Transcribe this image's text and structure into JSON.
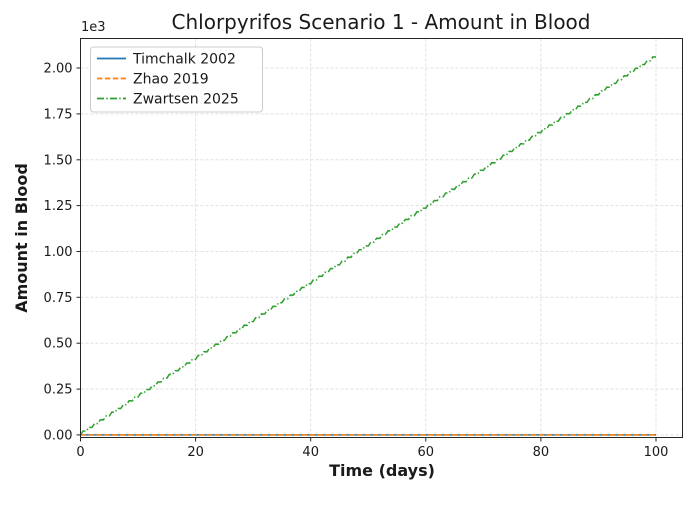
{
  "figure": {
    "title": "Chlorpyrifos Scenario 1 - Amount in Blood",
    "x_axis_label": "Time (days)",
    "y_axis_label": "Amount in Blood",
    "y_offset_text": "1e3",
    "background_color": "#ffffff"
  },
  "legend": {
    "position": "upper-left",
    "entries": [
      {
        "label": "Timchalk 2002",
        "color": "#1f77b4",
        "linestyle": "solid"
      },
      {
        "label": "Zhao 2019",
        "color": "#ff7f0e",
        "linestyle": "dashed"
      },
      {
        "label": "Zwartsen 2025",
        "color": "#2ca02c",
        "linestyle": "dashdot"
      }
    ]
  },
  "chart_data": {
    "type": "line",
    "title": "Chlorpyrifos Scenario 1 - Amount in Blood",
    "xlabel": "Time (days)",
    "ylabel": "Amount in Blood",
    "y_offset_multiplier": "1e3",
    "xlim": [
      0,
      104.6
    ],
    "ylim": [
      -14,
      2161
    ],
    "x_ticks": [
      0,
      20,
      40,
      60,
      80,
      100
    ],
    "x_tick_labels": [
      "0",
      "20",
      "40",
      "60",
      "80",
      "100"
    ],
    "y_ticks": [
      0,
      250,
      500,
      750,
      1000,
      1250,
      1500,
      1750,
      2000
    ],
    "y_tick_labels": [
      "0.00",
      "0.25",
      "0.50",
      "0.75",
      "1.00",
      "1.25",
      "1.50",
      "1.75",
      "2.00"
    ],
    "grid": {
      "visible": true,
      "linestyle": "dashed",
      "color": "#e0e0e0"
    },
    "x": [
      0,
      5,
      10,
      15,
      20,
      25,
      30,
      35,
      40,
      45,
      50,
      55,
      60,
      65,
      70,
      75,
      80,
      85,
      90,
      95,
      100
    ],
    "series": [
      {
        "name": "Timchalk 2002",
        "color": "#1f77b4",
        "linestyle": "solid",
        "values": [
          0,
          0,
          0,
          0,
          0,
          0,
          0,
          0,
          0,
          0,
          0,
          0,
          0,
          0,
          0,
          0,
          0,
          0,
          0,
          0,
          0
        ],
        "note": "flat at ~0 across all 100 days"
      },
      {
        "name": "Zhao 2019",
        "color": "#ff7f0e",
        "linestyle": "dashed",
        "values": [
          0,
          0,
          0,
          0,
          0,
          0,
          0,
          0,
          0,
          0,
          0,
          0,
          0,
          0,
          0,
          0,
          0,
          0,
          0,
          0,
          0
        ],
        "note": "flat at ~0, overlapping Timchalk 2002 line"
      },
      {
        "name": "Zwartsen 2025",
        "color": "#2ca02c",
        "linestyle": "dashdot",
        "values": [
          0,
          103,
          206,
          309,
          412,
          515,
          618,
          721,
          824,
          927,
          1030,
          1133,
          1236,
          1339,
          1442,
          1545,
          1648,
          1751,
          1854,
          1957,
          2060
        ],
        "daily_oscillation_amplitude": 12,
        "note": "near-linear accumulation to ~2.06e3 at day 100 with small daily dosing sawtooth"
      }
    ]
  }
}
